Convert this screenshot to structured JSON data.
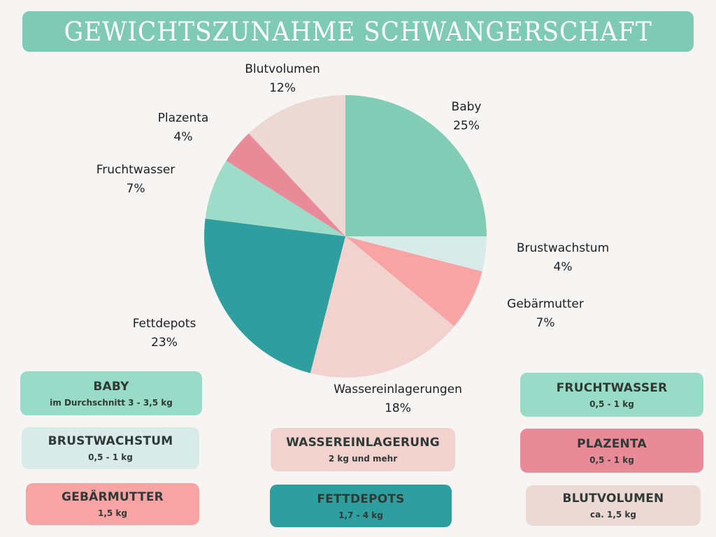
{
  "header": {
    "title": "GEWICHTSZUNAHME SCHWANGERSCHAFT"
  },
  "colors": {
    "background": "#f6f5f3",
    "title_bar": "#7fcab5",
    "baby": "#82cbb5",
    "brustwachstum": "#d8ebe8",
    "gebaermutter": "#f9a4a4",
    "wassereinlagerungen": "#f2d2cf",
    "fettdepots": "#2f9e9f",
    "fruchtwasser": "#9cdcc8",
    "plazenta": "#e88a98",
    "blutvolumen": "#ecd9d4"
  },
  "chart_data": {
    "type": "pie",
    "title": "GEWICHTSZUNAHME SCHWANGERSCHAFT",
    "start_angle": "12 o'clock",
    "direction": "clockwise",
    "categories": [
      "Baby",
      "Brustwachstum",
      "Gebärmutter",
      "Wassereinlagerungen",
      "Fettdepots",
      "Fruchtwasser",
      "Plazenta",
      "Blutvolumen"
    ],
    "values": [
      25,
      4,
      7,
      18,
      23,
      7,
      4,
      12
    ],
    "unit": "%",
    "labels": [
      "Baby 25%",
      "Brustwachstum 4%",
      "Gebärmutter 7%",
      "Wassereinlagerungen 18%",
      "Fettdepots 23%",
      "Fruchtwasser 7%",
      "Plazenta 4%",
      "Blutvolumen 12%"
    ],
    "legend": "none (outside data labels)"
  },
  "slice_labels": [
    {
      "name": "Baby",
      "pct": "25%"
    },
    {
      "name": "Brustwachstum",
      "pct": "4%"
    },
    {
      "name": "Gebärmutter",
      "pct": "7%"
    },
    {
      "name": "Wassereinlagerungen",
      "pct": "18%"
    },
    {
      "name": "Fettdepots",
      "pct": "23%"
    },
    {
      "name": "Fruchtwasser",
      "pct": "7%"
    },
    {
      "name": "Plazenta",
      "pct": "4%"
    },
    {
      "name": "Blutvolumen",
      "pct": "12%"
    }
  ],
  "cards": {
    "baby": {
      "title": "BABY",
      "sub": "im Durchschnitt 3 - 3,5 kg"
    },
    "brustwachstum": {
      "title": "BRUSTWACHSTUM",
      "sub": "0,5 - 1 kg"
    },
    "gebaermutter": {
      "title": "GEBÄRMUTTER",
      "sub": "1,5 kg"
    },
    "wassereinlagerung": {
      "title": "WASSEREINLAGERUNG",
      "sub": "2 kg  und mehr"
    },
    "fettdepots": {
      "title": "FETTDEPOTS",
      "sub": "1,7 - 4 kg"
    },
    "fruchtwasser": {
      "title": "FRUCHTWASSER",
      "sub": "0,5 - 1 kg"
    },
    "plazenta": {
      "title": "PLAZENTA",
      "sub": "0,5 - 1 kg"
    },
    "blutvolumen": {
      "title": "BLUTVOLUMEN",
      "sub": "ca. 1,5 kg"
    }
  }
}
